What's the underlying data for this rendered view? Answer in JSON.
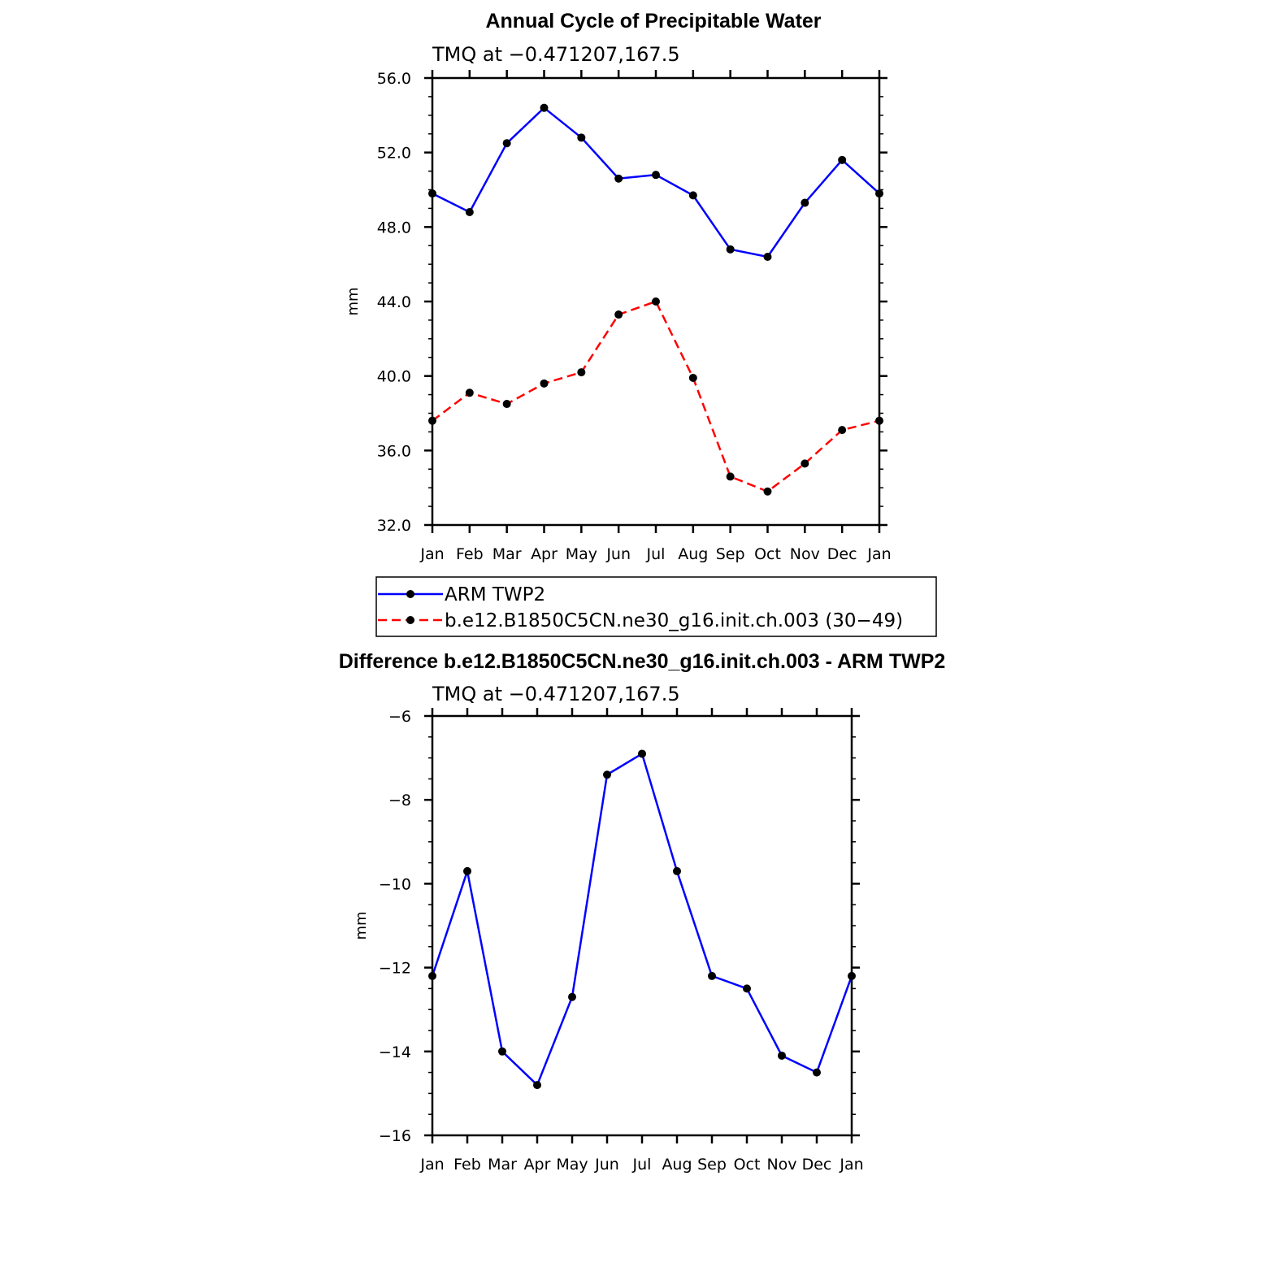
{
  "chart_data": [
    {
      "type": "line",
      "title": "Annual Cycle of Precipitable Water",
      "subtitle": "TMQ at −0.471207,167.5",
      "ylabel": "mm",
      "ylim": [
        32.0,
        56.0
      ],
      "yticks": [
        "32.0",
        "36.0",
        "40.0",
        "44.0",
        "48.0",
        "52.0",
        "56.0"
      ],
      "categories": [
        "Jan",
        "Feb",
        "Mar",
        "Apr",
        "May",
        "Jun",
        "Jul",
        "Aug",
        "Sep",
        "Oct",
        "Nov",
        "Dec",
        "Jan"
      ],
      "series": [
        {
          "name": "ARM TWP2",
          "color": "#0000ff",
          "dash": "solid",
          "values": [
            49.8,
            48.8,
            52.5,
            54.4,
            52.8,
            50.6,
            50.8,
            49.7,
            46.8,
            46.4,
            49.3,
            51.6,
            49.8
          ]
        },
        {
          "name": "b.e12.B1850C5CN.ne30_g16.init.ch.003 (30−49)",
          "color": "#ff0000",
          "dash": "dashed",
          "values": [
            37.6,
            39.1,
            38.5,
            39.6,
            40.2,
            43.3,
            44.0,
            39.9,
            34.6,
            33.8,
            35.3,
            37.1,
            37.6
          ]
        }
      ],
      "legend": "below"
    },
    {
      "type": "line",
      "title": "Difference b.e12.B1850C5CN.ne30_g16.init.ch.003 - ARM TWP2",
      "subtitle": "TMQ at −0.471207,167.5",
      "ylabel": "mm",
      "ylim": [
        -16,
        -6
      ],
      "yticks": [
        "−16",
        "−14",
        "−12",
        "−10",
        "−8",
        "−6"
      ],
      "categories": [
        "Jan",
        "Feb",
        "Mar",
        "Apr",
        "May",
        "Jun",
        "Jul",
        "Aug",
        "Sep",
        "Oct",
        "Nov",
        "Dec",
        "Jan"
      ],
      "series": [
        {
          "name": "difference",
          "color": "#0000ff",
          "dash": "solid",
          "values": [
            -12.2,
            -9.7,
            -14.0,
            -14.8,
            -12.7,
            -7.4,
            -6.9,
            -9.7,
            -12.2,
            -12.5,
            -14.1,
            -14.5,
            -12.2
          ]
        }
      ]
    }
  ]
}
